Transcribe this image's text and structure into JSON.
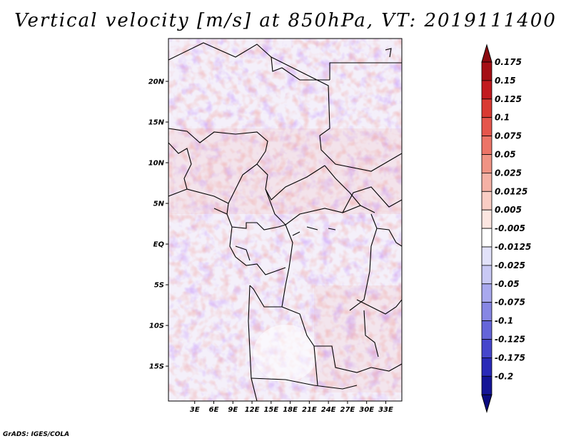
{
  "title": "Vertical velocity [m/s] at 850hPa, VT: 2019111400",
  "credit": "GrADS: IGES/COLA",
  "lat_labels": [
    "20N",
    "15N",
    "10N",
    "5N",
    "EQ",
    "5S",
    "10S",
    "15S"
  ],
  "lat_values": [
    20,
    15,
    10,
    5,
    0,
    -5,
    -10,
    -15
  ],
  "lon_labels": [
    "3E",
    "6E",
    "9E",
    "12E",
    "15E",
    "18E",
    "21E",
    "24E",
    "27E",
    "30E",
    "33E"
  ],
  "lon_values": [
    3,
    6,
    9,
    12,
    15,
    18,
    21,
    24,
    27,
    30,
    33
  ],
  "map_extent": {
    "lon_min": 0,
    "lon_max": 35,
    "lat_min": -20,
    "lat_max": 25
  },
  "colorbar": {
    "labels": [
      "0.175",
      "0.15",
      "0.125",
      "0.1",
      "0.075",
      "0.05",
      "0.025",
      "0.0125",
      "0.005",
      "-0.005",
      "-0.0125",
      "-0.025",
      "-0.05",
      "-0.075",
      "-0.1",
      "-0.125",
      "-0.175",
      "-0.2"
    ],
    "colors": [
      "#a50f15",
      "#c21a1f",
      "#d93a32",
      "#e5564c",
      "#ec7467",
      "#f09384",
      "#f5b1a5",
      "#f9cdc4",
      "#fce6e1",
      "#ffffff",
      "#e2e2fa",
      "#c9c9f4",
      "#a9a9ee",
      "#8787e4",
      "#6565d9",
      "#4646cc",
      "#2929b8",
      "#141496"
    ],
    "top_arrow_color": "#8b0a10",
    "bottom_arrow_color": "#0b0b80"
  }
}
